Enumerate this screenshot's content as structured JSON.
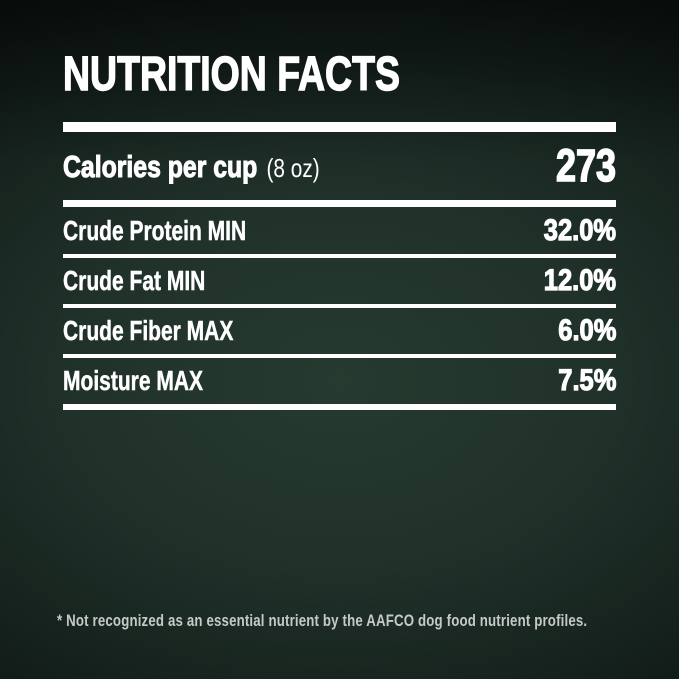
{
  "panel": {
    "title": "NUTRITION FACTS",
    "calories": {
      "label": "Calories per cup",
      "unit": "(8 oz)",
      "value": "273"
    },
    "rows": [
      {
        "label": "Crude Protein MIN",
        "value": "32.0%"
      },
      {
        "label": "Crude Fat MIN",
        "value": "12.0%"
      },
      {
        "label": "Crude Fiber MAX",
        "value": "6.0%"
      },
      {
        "label": "Moisture MAX",
        "value": "7.5%"
      }
    ],
    "footnote": "* Not recognized as an essential nutrient by the AAFCO dog food nutrient profiles."
  },
  "colors": {
    "background_center": "#263a30",
    "background_edge": "#070a09",
    "text": "#ffffff",
    "divider": "#ffffff",
    "footnote_text": "#c6c9c7"
  }
}
